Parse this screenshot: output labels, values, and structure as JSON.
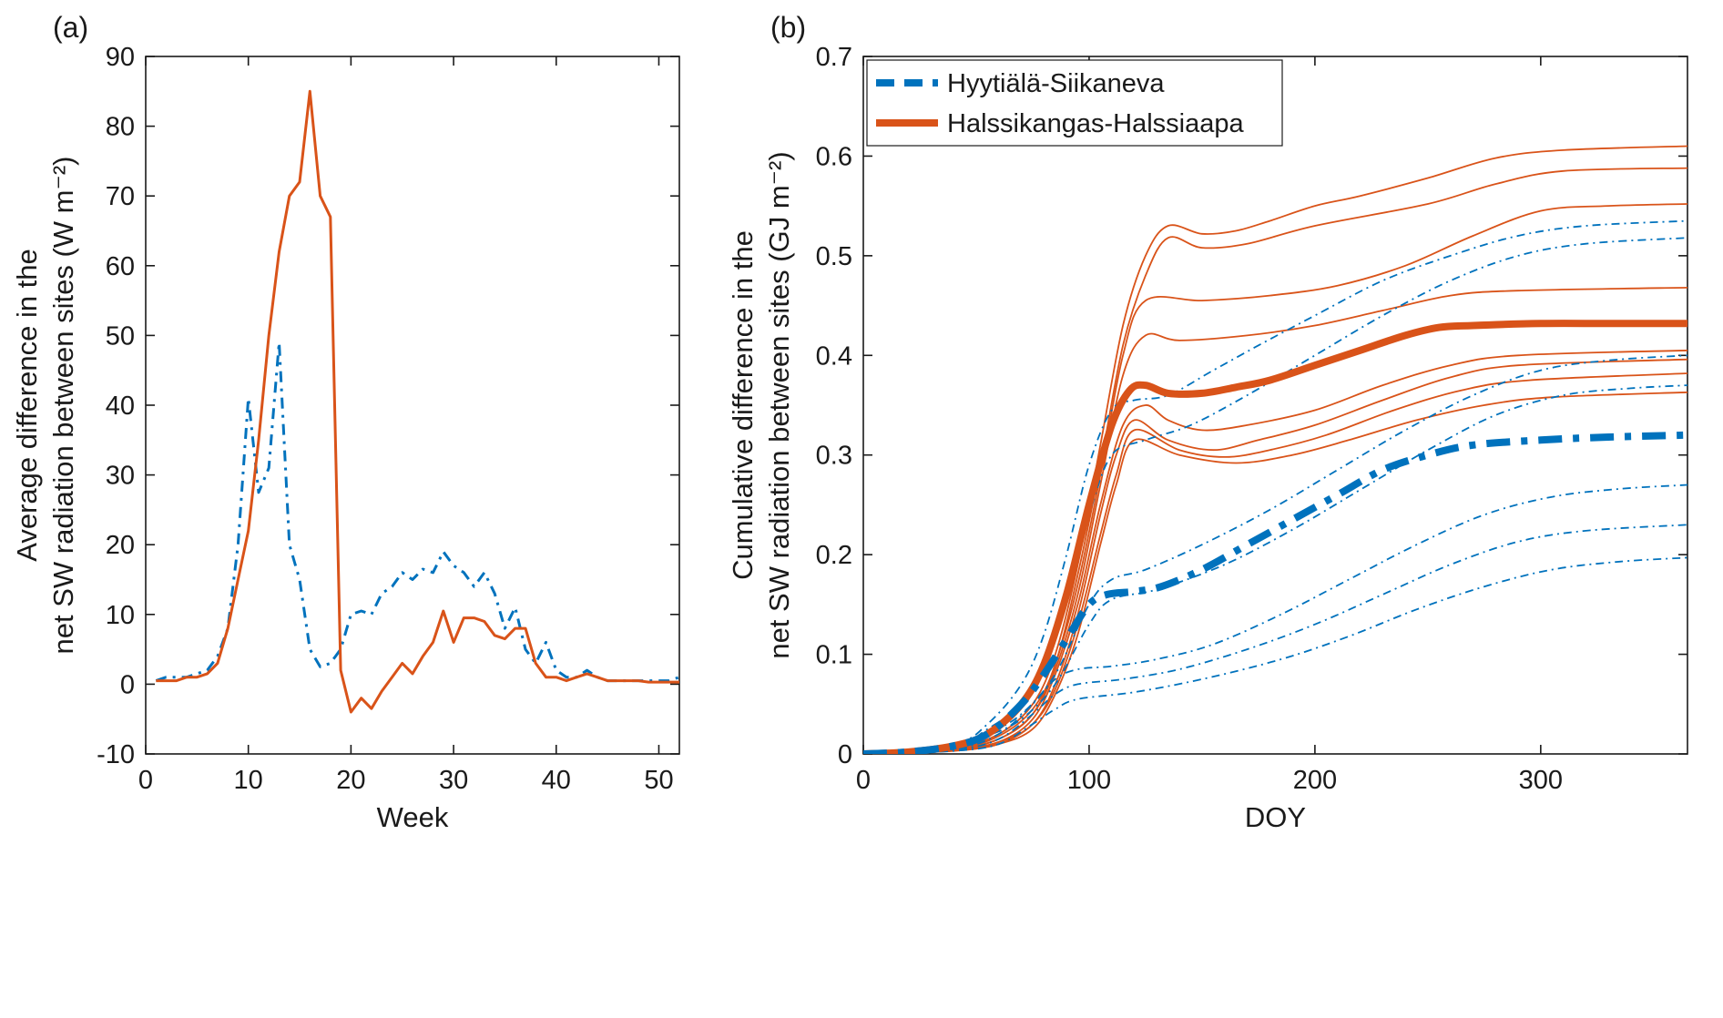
{
  "figure": {
    "background": "#ffffff"
  },
  "colors": {
    "blue": "#0072BD",
    "orange": "#D95319",
    "axis": "#1a1a1a"
  },
  "chart_data": [
    {
      "type": "line",
      "panel": "a",
      "panel_label": "(a)",
      "xlabel": "Week",
      "ylabel_lines": [
        "Average difference in the",
        "net SW radiation between sites (W m⁻²)"
      ],
      "xlim": [
        0,
        52
      ],
      "ylim": [
        -10,
        90
      ],
      "xticks": [
        0,
        10,
        20,
        30,
        40,
        50
      ],
      "yticks": [
        -10,
        0,
        10,
        20,
        30,
        40,
        50,
        60,
        70,
        80,
        90
      ],
      "grid": false,
      "series": [
        {
          "name": "hyytiala-siikaneva-weekly",
          "color": "#0072BD",
          "width": 3,
          "dash": "12 7 3 7",
          "smooth": false,
          "x": [
            1,
            2,
            3,
            4,
            5,
            6,
            7,
            8,
            9,
            10,
            11,
            12,
            13,
            14,
            15,
            16,
            17,
            18,
            19,
            20,
            21,
            22,
            23,
            24,
            25,
            26,
            27,
            28,
            29,
            30,
            31,
            32,
            33,
            34,
            35,
            36,
            37,
            38,
            39,
            40,
            41,
            42,
            43,
            44,
            45,
            46,
            47,
            48,
            49,
            50,
            51,
            52
          ],
          "y": [
            0.5,
            1,
            1,
            1,
            1.5,
            2,
            4,
            8,
            20,
            41,
            27.5,
            31,
            49,
            20,
            15,
            5,
            2.5,
            3,
            5,
            10,
            10.5,
            10,
            13,
            14,
            16,
            15,
            16.5,
            16,
            19,
            17,
            16,
            14,
            16,
            13,
            8,
            11,
            5,
            3,
            6,
            2,
            1,
            1,
            2,
            1,
            0.5,
            0.5,
            0.5,
            0.5,
            0.5,
            0.5,
            0.5,
            1
          ]
        },
        {
          "name": "halssikangas-halssiaapa-weekly",
          "color": "#D95319",
          "width": 3,
          "dash": "",
          "smooth": false,
          "x": [
            1,
            2,
            3,
            4,
            5,
            6,
            7,
            8,
            9,
            10,
            11,
            12,
            13,
            14,
            15,
            16,
            17,
            18,
            19,
            20,
            21,
            22,
            23,
            24,
            25,
            26,
            27,
            28,
            29,
            30,
            31,
            32,
            33,
            34,
            35,
            36,
            37,
            38,
            39,
            40,
            41,
            42,
            43,
            44,
            45,
            46,
            47,
            48,
            49,
            50,
            51,
            52
          ],
          "y": [
            0.5,
            0.5,
            0.5,
            1,
            1,
            1.5,
            3,
            8,
            15,
            22,
            35,
            50,
            62,
            70,
            72,
            85,
            70,
            67,
            2,
            -4,
            -2,
            -3.5,
            -1,
            1,
            3,
            1.5,
            4,
            6,
            10.5,
            6,
            9.5,
            9.5,
            9,
            7,
            6.5,
            8,
            8,
            3,
            1,
            1,
            0.5,
            1,
            1.5,
            1,
            0.5,
            0.5,
            0.5,
            0.5,
            0.3,
            0.3,
            0.3,
            0.3
          ]
        }
      ]
    },
    {
      "type": "line",
      "panel": "b",
      "panel_label": "(b)",
      "xlabel": "DOY",
      "ylabel_lines": [
        "Cumulative difference in the",
        "net SW radiation between sites (GJ m⁻²)"
      ],
      "xlim": [
        0,
        365
      ],
      "ylim": [
        0,
        0.7
      ],
      "xticks": [
        0,
        100,
        200,
        300
      ],
      "yticks": [
        0,
        0.1,
        0.2,
        0.3,
        0.4,
        0.5,
        0.6,
        0.7
      ],
      "grid": false,
      "legend": [
        {
          "label": "Hyytiälä-Siikaneva",
          "color": "#0072BD",
          "dash": "20 11",
          "width": 8
        },
        {
          "label": "Halssikangas-Halssiaapa",
          "color": "#D95319",
          "dash": "",
          "width": 8
        }
      ],
      "series": [
        {
          "name": "halssi-year-1",
          "color": "#D95319",
          "width": 1.8,
          "dash": "",
          "smooth": true,
          "x": [
            0,
            40,
            60,
            75,
            85,
            95,
            105,
            115,
            125,
            135,
            150,
            165,
            180,
            200,
            220,
            250,
            280,
            310,
            365
          ],
          "y": [
            0,
            0.006,
            0.02,
            0.05,
            0.1,
            0.19,
            0.31,
            0.43,
            0.5,
            0.53,
            0.522,
            0.525,
            0.535,
            0.55,
            0.56,
            0.578,
            0.598,
            0.606,
            0.61
          ]
        },
        {
          "name": "halssi-year-2",
          "color": "#D95319",
          "width": 1.8,
          "dash": "",
          "smooth": true,
          "x": [
            0,
            40,
            60,
            75,
            85,
            95,
            105,
            115,
            125,
            135,
            150,
            170,
            200,
            250,
            280,
            310,
            365
          ],
          "y": [
            0,
            0.005,
            0.018,
            0.045,
            0.09,
            0.18,
            0.29,
            0.41,
            0.48,
            0.518,
            0.508,
            0.512,
            0.53,
            0.552,
            0.572,
            0.585,
            0.588
          ]
        },
        {
          "name": "halssi-year-3",
          "color": "#D95319",
          "width": 1.8,
          "dash": "",
          "smooth": true,
          "x": [
            0,
            40,
            60,
            75,
            85,
            95,
            105,
            115,
            125,
            150,
            180,
            210,
            240,
            270,
            300,
            330,
            365
          ],
          "y": [
            0,
            0.005,
            0.015,
            0.04,
            0.09,
            0.17,
            0.28,
            0.4,
            0.455,
            0.455,
            0.46,
            0.47,
            0.49,
            0.52,
            0.545,
            0.55,
            0.552
          ]
        },
        {
          "name": "halssi-year-4",
          "color": "#D95319",
          "width": 1.8,
          "dash": "",
          "smooth": true,
          "x": [
            0,
            40,
            60,
            75,
            85,
            95,
            105,
            115,
            125,
            140,
            170,
            200,
            230,
            260,
            290,
            365
          ],
          "y": [
            0,
            0.005,
            0.015,
            0.04,
            0.085,
            0.16,
            0.27,
            0.38,
            0.42,
            0.415,
            0.42,
            0.43,
            0.445,
            0.46,
            0.465,
            0.468
          ]
        },
        {
          "name": "halssi-year-5",
          "color": "#D95319",
          "width": 1.8,
          "dash": "",
          "smooth": true,
          "x": [
            0,
            40,
            60,
            75,
            85,
            95,
            105,
            115,
            125,
            135,
            150,
            170,
            200,
            230,
            260,
            290,
            365
          ],
          "y": [
            0,
            0.004,
            0.012,
            0.035,
            0.08,
            0.15,
            0.25,
            0.33,
            0.35,
            0.335,
            0.325,
            0.33,
            0.345,
            0.37,
            0.39,
            0.4,
            0.405
          ]
        },
        {
          "name": "halssi-year-6",
          "color": "#D95319",
          "width": 1.8,
          "dash": "",
          "smooth": true,
          "x": [
            0,
            40,
            60,
            75,
            85,
            95,
            105,
            112,
            120,
            135,
            155,
            175,
            200,
            230,
            260,
            290,
            365
          ],
          "y": [
            0,
            0.004,
            0.012,
            0.03,
            0.07,
            0.14,
            0.24,
            0.3,
            0.335,
            0.315,
            0.305,
            0.315,
            0.33,
            0.355,
            0.378,
            0.39,
            0.396
          ]
        },
        {
          "name": "halssi-year-7",
          "color": "#D95319",
          "width": 1.8,
          "dash": "",
          "smooth": true,
          "x": [
            0,
            40,
            60,
            75,
            85,
            95,
            105,
            112,
            120,
            140,
            160,
            180,
            205,
            235,
            265,
            295,
            365
          ],
          "y": [
            0,
            0.004,
            0.01,
            0.03,
            0.065,
            0.13,
            0.22,
            0.28,
            0.325,
            0.305,
            0.298,
            0.305,
            0.32,
            0.345,
            0.365,
            0.375,
            0.382
          ]
        },
        {
          "name": "halssi-year-8",
          "color": "#D95319",
          "width": 1.8,
          "dash": "",
          "smooth": true,
          "x": [
            0,
            40,
            60,
            75,
            85,
            95,
            105,
            112,
            120,
            140,
            165,
            190,
            215,
            245,
            275,
            305,
            365
          ],
          "y": [
            0,
            0.003,
            0.01,
            0.025,
            0.06,
            0.12,
            0.21,
            0.27,
            0.315,
            0.3,
            0.292,
            0.3,
            0.315,
            0.335,
            0.35,
            0.358,
            0.363
          ]
        },
        {
          "name": "hyytiala-year-1",
          "color": "#0072BD",
          "width": 1.8,
          "dash": "9 5 2 5",
          "smooth": true,
          "x": [
            0,
            40,
            55,
            70,
            80,
            90,
            100,
            110,
            120,
            135,
            155,
            175,
            200,
            230,
            260,
            290,
            320,
            365
          ],
          "y": [
            0,
            0.01,
            0.03,
            0.07,
            0.12,
            0.2,
            0.29,
            0.345,
            0.355,
            0.36,
            0.385,
            0.41,
            0.44,
            0.475,
            0.5,
            0.52,
            0.53,
            0.535
          ]
        },
        {
          "name": "hyytiala-year-2",
          "color": "#0072BD",
          "width": 1.8,
          "dash": "9 5 2 5",
          "smooth": true,
          "x": [
            0,
            40,
            55,
            70,
            80,
            90,
            100,
            110,
            125,
            145,
            170,
            200,
            230,
            260,
            290,
            320,
            365
          ],
          "y": [
            0,
            0.008,
            0.025,
            0.05,
            0.09,
            0.16,
            0.24,
            0.3,
            0.315,
            0.33,
            0.36,
            0.4,
            0.44,
            0.475,
            0.5,
            0.512,
            0.518
          ]
        },
        {
          "name": "hyytiala-year-3",
          "color": "#0072BD",
          "width": 1.8,
          "dash": "9 5 2 5",
          "smooth": true,
          "x": [
            0,
            40,
            55,
            70,
            85,
            100,
            110,
            125,
            150,
            180,
            210,
            240,
            270,
            300,
            330,
            365
          ],
          "y": [
            0,
            0.006,
            0.02,
            0.04,
            0.08,
            0.15,
            0.175,
            0.185,
            0.21,
            0.245,
            0.285,
            0.325,
            0.36,
            0.385,
            0.395,
            0.4
          ]
        },
        {
          "name": "hyytiala-year-4",
          "color": "#0072BD",
          "width": 1.8,
          "dash": "9 5 2 5",
          "smooth": true,
          "x": [
            0,
            40,
            55,
            70,
            85,
            100,
            110,
            130,
            160,
            190,
            220,
            250,
            280,
            310,
            340,
            365
          ],
          "y": [
            0,
            0.005,
            0.018,
            0.035,
            0.07,
            0.13,
            0.155,
            0.165,
            0.19,
            0.225,
            0.265,
            0.305,
            0.34,
            0.36,
            0.367,
            0.37
          ]
        },
        {
          "name": "hyytiala-year-5",
          "color": "#0072BD",
          "width": 1.8,
          "dash": "9 5 2 5",
          "smooth": true,
          "x": [
            0,
            40,
            60,
            75,
            85,
            95,
            110,
            130,
            155,
            185,
            215,
            245,
            275,
            305,
            335,
            365
          ],
          "y": [
            0,
            0.005,
            0.02,
            0.05,
            0.075,
            0.085,
            0.088,
            0.095,
            0.11,
            0.14,
            0.175,
            0.21,
            0.24,
            0.258,
            0.266,
            0.27
          ]
        },
        {
          "name": "hyytiala-year-6",
          "color": "#0072BD",
          "width": 1.8,
          "dash": "9 5 2 5",
          "smooth": true,
          "x": [
            0,
            40,
            60,
            75,
            85,
            95,
            115,
            140,
            170,
            200,
            230,
            260,
            290,
            320,
            365
          ],
          "y": [
            0,
            0.004,
            0.015,
            0.04,
            0.06,
            0.07,
            0.075,
            0.085,
            0.105,
            0.13,
            0.16,
            0.19,
            0.213,
            0.224,
            0.23
          ]
        },
        {
          "name": "hyytiala-year-7",
          "color": "#0072BD",
          "width": 1.8,
          "dash": "9 5 2 5",
          "smooth": true,
          "x": [
            0,
            40,
            60,
            75,
            85,
            95,
            120,
            150,
            185,
            215,
            245,
            275,
            305,
            335,
            365
          ],
          "y": [
            0,
            0.003,
            0.01,
            0.03,
            0.045,
            0.055,
            0.062,
            0.075,
            0.095,
            0.118,
            0.145,
            0.168,
            0.185,
            0.193,
            0.197
          ]
        },
        {
          "name": "halssikangas-halssiaapa-mean",
          "color": "#D95319",
          "width": 8,
          "dash": "",
          "smooth": true,
          "x": [
            0,
            20,
            40,
            55,
            70,
            80,
            90,
            100,
            110,
            118,
            125,
            135,
            150,
            165,
            180,
            200,
            220,
            240,
            255,
            270,
            300,
            330,
            365
          ],
          "y": [
            0,
            0.002,
            0.008,
            0.02,
            0.05,
            0.09,
            0.16,
            0.25,
            0.33,
            0.365,
            0.37,
            0.362,
            0.362,
            0.368,
            0.375,
            0.39,
            0.405,
            0.42,
            0.428,
            0.43,
            0.432,
            0.432,
            0.432
          ]
        },
        {
          "name": "hyytiala-siikaneva-mean",
          "color": "#0072BD",
          "width": 8,
          "dash": "26 12 7 12",
          "smooth": true,
          "x": [
            0,
            20,
            40,
            55,
            70,
            80,
            90,
            100,
            108,
            120,
            132,
            150,
            170,
            190,
            210,
            230,
            250,
            270,
            300,
            330,
            365
          ],
          "y": [
            0,
            0.002,
            0.008,
            0.02,
            0.05,
            0.08,
            0.115,
            0.15,
            0.16,
            0.163,
            0.168,
            0.185,
            0.21,
            0.235,
            0.26,
            0.285,
            0.3,
            0.31,
            0.315,
            0.318,
            0.32
          ]
        }
      ]
    }
  ]
}
